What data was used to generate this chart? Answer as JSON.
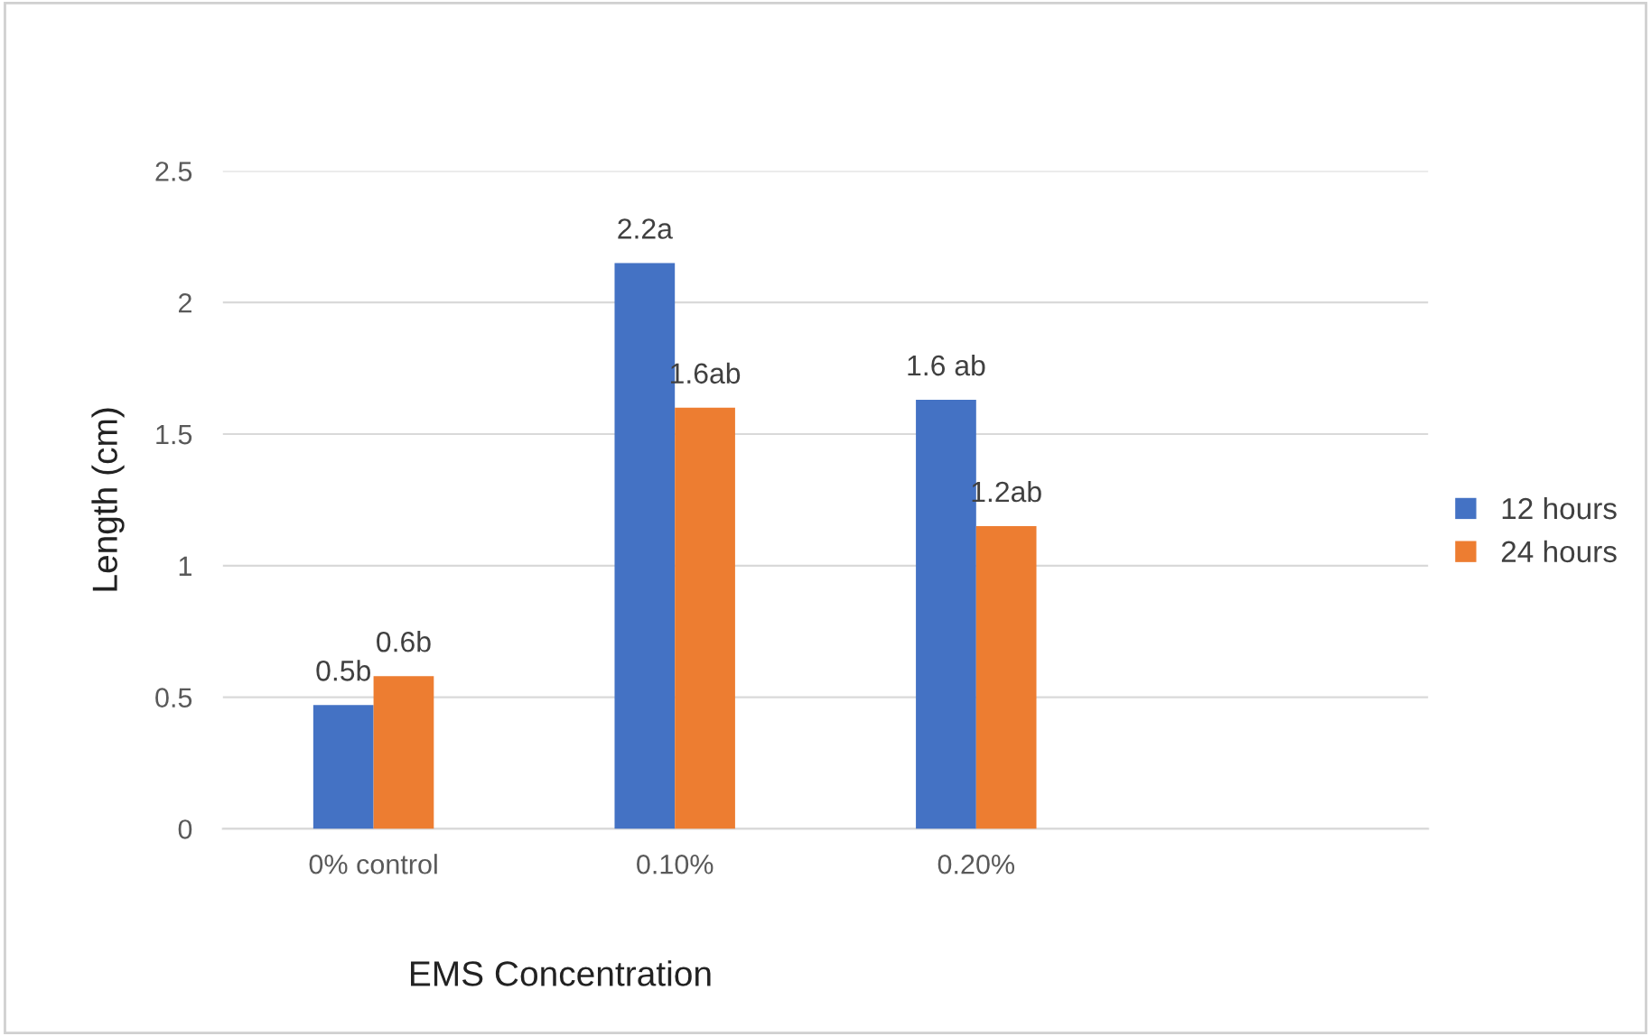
{
  "chart_data": {
    "type": "bar",
    "xlabel": "EMS Concentration",
    "ylabel": "Length (cm)",
    "categories": [
      "0% control",
      "0.10%",
      "0.20%",
      null
    ],
    "series": [
      {
        "name": "12 hours",
        "color": "#4472c4",
        "values": [
          0.47,
          2.15,
          1.63,
          null
        ],
        "value_labels": [
          "0.5b",
          "2.2a",
          "1.6 ab",
          null
        ]
      },
      {
        "name": "24 hours",
        "color": "#ed7d31",
        "values": [
          0.58,
          1.6,
          1.15,
          null
        ],
        "value_labels": [
          "0.6b",
          "1.6ab",
          "1.2ab",
          null
        ]
      }
    ],
    "ylim": [
      0,
      2.5
    ],
    "yticks": [
      0,
      0.5,
      1,
      1.5,
      2,
      2.5
    ],
    "grid": "y",
    "legend": "right"
  }
}
